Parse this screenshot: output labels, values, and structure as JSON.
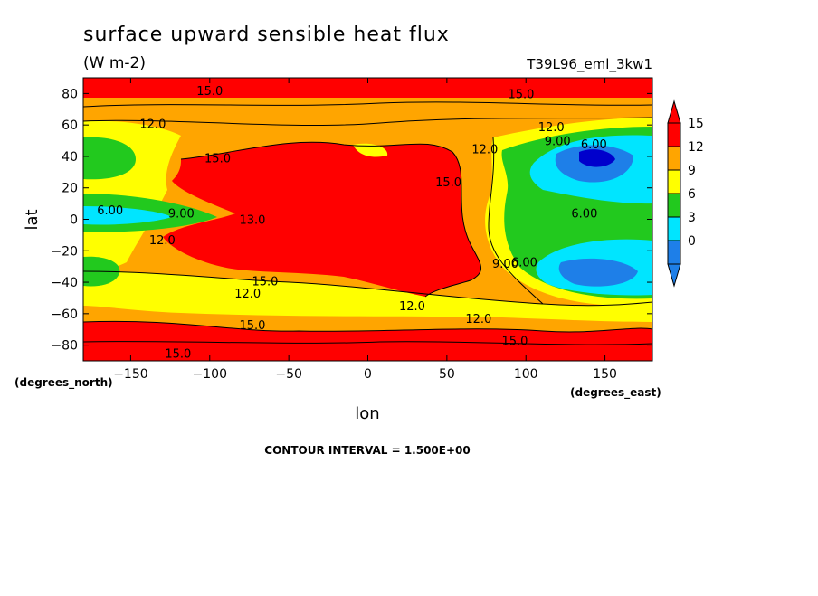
{
  "chart_data": {
    "type": "heatmap",
    "title": "surface upward sensible heat flux",
    "subtitle": "(W m-2)",
    "run_label": "T39L96_eml_3kw1",
    "xlabel": "lon",
    "ylabel": "lat",
    "x_units": "(degrees_east)",
    "y_units": "(degrees_north)",
    "xlim": [
      -180,
      180
    ],
    "ylim": [
      -90,
      90
    ],
    "x_ticks": [
      -150,
      -100,
      -50,
      0,
      50,
      100,
      150
    ],
    "y_ticks": [
      80,
      60,
      40,
      20,
      0,
      -20,
      -40,
      -60,
      -80
    ],
    "contour_interval_text": "CONTOUR INTERVAL = 1.500E+00",
    "colorbar": {
      "labels": [
        "15",
        "12",
        "9",
        "6",
        "3",
        "0"
      ],
      "levels": [
        0,
        3,
        6,
        9,
        12,
        15
      ],
      "colors": [
        "#1e7fe8",
        "#00e5ff",
        "#22c91e",
        "#ffff00",
        "#ffa500",
        "#ff0000"
      ],
      "extend": "both"
    },
    "contour_labels": [
      {
        "text": "15.0",
        "lon": -100,
        "lat": 82
      },
      {
        "text": "15.0",
        "lon": 97,
        "lat": 80
      },
      {
        "text": "12.0",
        "lon": -136,
        "lat": 61
      },
      {
        "text": "12.0",
        "lon": 116,
        "lat": 59
      },
      {
        "text": "12.0",
        "lon": 74,
        "lat": 45
      },
      {
        "text": "9.00",
        "lon": 120,
        "lat": 50
      },
      {
        "text": "6.00",
        "lon": 143,
        "lat": 48
      },
      {
        "text": "15.0",
        "lon": -95,
        "lat": 39
      },
      {
        "text": "15.0",
        "lon": 51,
        "lat": 24
      },
      {
        "text": "6.00",
        "lon": -163,
        "lat": 6
      },
      {
        "text": "9.00",
        "lon": -118,
        "lat": 4
      },
      {
        "text": "13.0",
        "lon": -73,
        "lat": 0
      },
      {
        "text": "6.00",
        "lon": 137,
        "lat": 4
      },
      {
        "text": "12.0",
        "lon": -130,
        "lat": -13
      },
      {
        "text": "9.00",
        "lon": 87,
        "lat": -28
      },
      {
        "text": "6.00",
        "lon": 99,
        "lat": -27
      },
      {
        "text": "15.0",
        "lon": -65,
        "lat": -39
      },
      {
        "text": "12.0",
        "lon": -76,
        "lat": -47
      },
      {
        "text": "12.0",
        "lon": 28,
        "lat": -55
      },
      {
        "text": "12.0",
        "lon": 70,
        "lat": -63
      },
      {
        "text": "15.0",
        "lon": -73,
        "lat": -67
      },
      {
        "text": "15.0",
        "lon": 93,
        "lat": -77
      },
      {
        "text": "15.0",
        "lon": -120,
        "lat": -85
      }
    ]
  }
}
